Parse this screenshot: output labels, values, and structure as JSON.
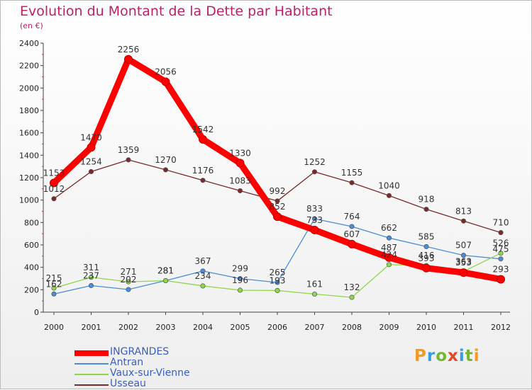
{
  "title": "Evolution du Montant de la Dette par Habitant",
  "subtitle": "(en €)",
  "logo": {
    "text": "Proxiti",
    "colors": [
      "#f39a1e",
      "#3b9be0",
      "#74b72e",
      "#e04a26",
      "#3b9be0",
      "#74b72e",
      "#f39a1e"
    ]
  },
  "chart_data": {
    "type": "line",
    "x": [
      "2000",
      "2001",
      "2002",
      "2003",
      "2004",
      "2005",
      "2006",
      "2007",
      "2008",
      "2009",
      "2010",
      "2011",
      "2012"
    ],
    "ylim": [
      0,
      2400
    ],
    "yticks": [
      0,
      200,
      400,
      600,
      800,
      1000,
      1200,
      1400,
      1600,
      1800,
      2000,
      2200,
      2400
    ],
    "grid": false,
    "legend_position": "bottom-left",
    "series": [
      {
        "name": "INGRANDES",
        "color": "#ff0000",
        "values": [
          1153,
          1470,
          2256,
          2056,
          1542,
          1330,
          852,
          733,
          607,
          487,
          393,
          353,
          293
        ]
      },
      {
        "name": "Antran",
        "color": "#4a8dd6",
        "values": [
          162,
          237,
          202,
          281,
          367,
          299,
          265,
          833,
          764,
          662,
          585,
          507,
          475
        ]
      },
      {
        "name": "Vaux-sur-Vienne",
        "color": "#8fd64a",
        "values": [
          215,
          311,
          271,
          281,
          234,
          196,
          193,
          161,
          132,
          424,
          416,
          363,
          526
        ]
      },
      {
        "name": "Usseau",
        "color": "#7a2a2a",
        "values": [
          1012,
          1254,
          1359,
          1270,
          1176,
          1083,
          992,
          1252,
          1155,
          1040,
          918,
          813,
          710
        ]
      }
    ]
  }
}
